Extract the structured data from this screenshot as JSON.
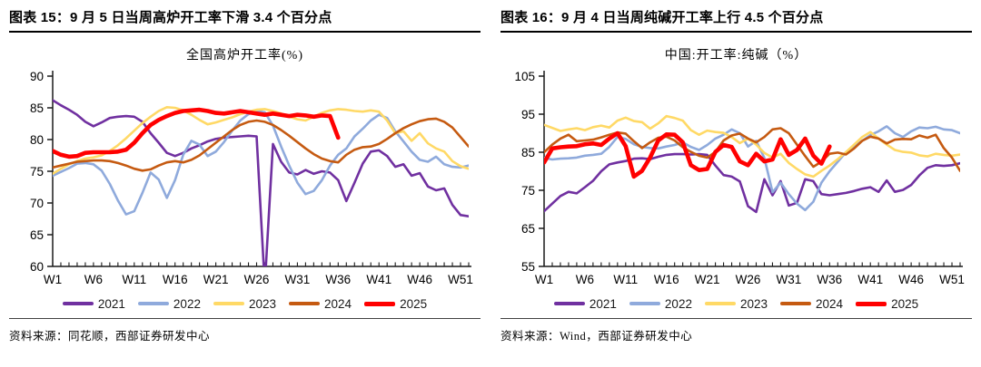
{
  "panels": [
    {
      "header": "图表 15：9 月 5 日当周高炉开工率下滑 3.4 个百分点",
      "source": "资料来源：同花顺，西部证券研发中心"
    },
    {
      "header": "图表 16：9 月 4 日当周纯碱开工率上行 4.5 个百分点",
      "source": "资料来源：Wind，西部证券研发中心"
    }
  ],
  "chart_data": [
    {
      "type": "line",
      "title": "全国高炉开工率(%)",
      "xlabel": "",
      "ylabel": "",
      "ylim": [
        60,
        90
      ],
      "ytick_step": 5,
      "x_weeks": 52,
      "x_tick_labels": [
        "W1",
        "W6",
        "W11",
        "W16",
        "W21",
        "W26",
        "W31",
        "W36",
        "W41",
        "W46",
        "W51"
      ],
      "grid": false,
      "legend_position": "bottom",
      "series": [
        {
          "name": "2021",
          "color": "#7030A0",
          "width": 2.6,
          "values": [
            86.2,
            85.4,
            84.7,
            83.9,
            82.8,
            82.1,
            82.7,
            83.4,
            83.6,
            83.7,
            83.6,
            82.8,
            81.0,
            79.5,
            77.9,
            77.4,
            77.9,
            78.6,
            79.1,
            79.7,
            80.1,
            80.3,
            80.4,
            80.5,
            80.6,
            80.5,
            57.0,
            79.3,
            76.5,
            74.8,
            74.5,
            75.2,
            74.6,
            75.0,
            74.8,
            73.6,
            70.3,
            73.2,
            76.2,
            78.1,
            78.3,
            77.4,
            75.7,
            76.1,
            74.3,
            74.7,
            72.6,
            72.0,
            72.3,
            69.7,
            68.1,
            67.9
          ]
        },
        {
          "name": "2022",
          "color": "#8FAADC",
          "width": 2.6,
          "values": [
            74.3,
            74.9,
            75.5,
            76.2,
            76.3,
            76.1,
            75.1,
            73.0,
            70.4,
            68.2,
            68.7,
            71.6,
            74.8,
            73.7,
            70.8,
            73.6,
            77.6,
            79.8,
            79.2,
            77.4,
            78.1,
            79.6,
            81.4,
            83.0,
            84.0,
            84.5,
            84.3,
            82.2,
            78.9,
            75.9,
            73.2,
            71.4,
            71.9,
            73.6,
            75.9,
            77.6,
            78.6,
            80.5,
            81.7,
            83.0,
            83.9,
            83.4,
            81.3,
            79.7,
            78.1,
            76.8,
            76.5,
            77.3,
            76.1,
            75.7,
            75.6,
            75.9
          ]
        },
        {
          "name": "2023",
          "color": "#FFD966",
          "width": 2.6,
          "values": [
            74.6,
            75.4,
            76.1,
            76.6,
            77.0,
            77.2,
            77.5,
            78.2,
            79.1,
            80.2,
            81.4,
            82.6,
            83.6,
            84.5,
            85.1,
            85.0,
            84.6,
            83.9,
            83.1,
            82.4,
            82.7,
            83.1,
            83.5,
            84.0,
            84.4,
            84.7,
            84.8,
            84.5,
            84.1,
            83.6,
            83.2,
            83.0,
            83.6,
            84.2,
            84.6,
            84.8,
            84.7,
            84.5,
            84.4,
            84.6,
            84.4,
            83.0,
            81.0,
            81.3,
            79.8,
            81.0,
            79.4,
            78.6,
            78.1,
            76.6,
            75.8,
            75.4
          ]
        },
        {
          "name": "2024",
          "color": "#C55A11",
          "width": 2.6,
          "values": [
            75.6,
            75.9,
            76.2,
            76.5,
            76.6,
            76.7,
            76.7,
            76.6,
            76.3,
            75.9,
            75.4,
            75.1,
            75.3,
            75.9,
            76.4,
            76.6,
            76.4,
            76.8,
            77.5,
            78.5,
            79.5,
            80.5,
            81.5,
            82.3,
            82.8,
            83.0,
            82.8,
            82.3,
            81.5,
            80.6,
            79.6,
            78.6,
            77.7,
            77.0,
            76.6,
            76.4,
            77.6,
            78.4,
            78.8,
            78.9,
            79.3,
            80.1,
            81.0,
            81.8,
            82.4,
            82.9,
            83.2,
            83.3,
            82.8,
            81.9,
            80.4,
            78.9
          ]
        },
        {
          "name": "2025",
          "color": "#FF0000",
          "width": 4.6,
          "values": [
            78.2,
            77.6,
            77.3,
            77.4,
            77.9,
            78.0,
            78.0,
            78.0,
            78.1,
            78.4,
            79.5,
            81.0,
            82.3,
            83.1,
            83.7,
            84.2,
            84.5,
            84.6,
            84.7,
            84.5,
            84.2,
            84.1,
            84.3,
            84.5,
            84.3,
            84.1,
            83.9,
            84.1,
            83.9,
            83.7,
            83.9,
            83.8,
            83.6,
            83.8,
            83.7,
            80.3,
            null,
            null,
            null,
            null,
            null,
            null,
            null,
            null,
            null,
            null,
            null,
            null,
            null,
            null,
            null,
            null
          ]
        }
      ]
    },
    {
      "type": "line",
      "title": "中国:开工率:纯碱（%）",
      "xlabel": "",
      "ylabel": "",
      "ylim": [
        55,
        105
      ],
      "ytick_step": 10,
      "x_weeks": 52,
      "x_tick_labels": [
        "W1",
        "W6",
        "W11",
        "W16",
        "W21",
        "W26",
        "W31",
        "W36",
        "W41",
        "W46",
        "W51"
      ],
      "grid": false,
      "legend_position": "bottom",
      "series": [
        {
          "name": "2021",
          "color": "#7030A0",
          "width": 2.6,
          "values": [
            69.5,
            71.5,
            73.5,
            74.6,
            74.2,
            75.8,
            77.5,
            80.0,
            81.8,
            82.3,
            82.7,
            83.3,
            83.4,
            83.2,
            83.8,
            84.3,
            84.5,
            84.5,
            84.4,
            84.5,
            84.3,
            81.5,
            79.0,
            78.6,
            77.3,
            70.8,
            69.3,
            77.9,
            73.7,
            77.4,
            71.0,
            71.7,
            77.9,
            77.4,
            74.0,
            73.7,
            74.0,
            74.3,
            74.8,
            75.4,
            75.8,
            74.6,
            77.6,
            74.6,
            75.1,
            76.4,
            78.9,
            80.9,
            81.6,
            81.4,
            81.6,
            82.1
          ]
        },
        {
          "name": "2022",
          "color": "#8FAADC",
          "width": 2.6,
          "values": [
            83.5,
            83.1,
            83.3,
            83.4,
            83.6,
            84.1,
            84.3,
            84.6,
            86.4,
            89.0,
            88.5,
            87.1,
            86.4,
            86.1,
            86.0,
            86.5,
            86.9,
            87.6,
            86.4,
            85.6,
            86.9,
            88.6,
            89.6,
            91.0,
            90.0,
            86.5,
            88.0,
            83.5,
            74.5,
            77.0,
            74.0,
            71.5,
            69.8,
            72.0,
            77.0,
            80.0,
            82.5,
            85.0,
            86.5,
            88.0,
            89.5,
            90.5,
            91.8,
            90.0,
            89.0,
            90.5,
            91.5,
            91.3,
            91.7,
            91.0,
            90.8,
            90.0
          ]
        },
        {
          "name": "2023",
          "color": "#FFD966",
          "width": 2.6,
          "values": [
            92.2,
            91.4,
            90.6,
            91.0,
            91.3,
            90.8,
            91.6,
            92.0,
            91.5,
            93.3,
            94.1,
            93.2,
            92.9,
            91.2,
            92.6,
            94.5,
            94.0,
            93.3,
            90.8,
            89.6,
            90.7,
            90.3,
            90.1,
            89.0,
            87.4,
            88.6,
            87.0,
            84.8,
            83.6,
            84.6,
            82.2,
            80.6,
            79.2,
            78.6,
            80.1,
            81.5,
            83.2,
            85.0,
            87.0,
            89.0,
            90.3,
            88.6,
            87.0,
            85.6,
            85.1,
            84.9,
            84.2,
            83.9,
            84.6,
            84.3,
            84.1,
            84.4
          ]
        },
        {
          "name": "2024",
          "color": "#C55A11",
          "width": 2.6,
          "values": [
            85.0,
            87.0,
            88.6,
            89.6,
            87.9,
            88.1,
            88.3,
            88.9,
            89.6,
            90.2,
            89.9,
            87.9,
            86.1,
            87.6,
            88.8,
            89.1,
            88.1,
            86.3,
            85.1,
            84.1,
            83.6,
            85.1,
            88.1,
            89.4,
            89.9,
            88.6,
            87.6,
            89.0,
            91.0,
            91.3,
            90.0,
            87.0,
            84.0,
            81.2,
            82.5,
            84.6,
            84.9,
            84.4,
            86.0,
            88.0,
            89.1,
            88.6,
            87.3,
            88.3,
            88.5,
            88.4,
            89.4,
            88.8,
            89.6,
            86.1,
            83.6,
            80.1
          ]
        },
        {
          "name": "2025",
          "color": "#FF0000",
          "width": 4.6,
          "values": [
            82.3,
            86.0,
            86.3,
            86.5,
            86.6,
            87.1,
            87.3,
            86.9,
            88.6,
            90.0,
            86.6,
            78.6,
            80.1,
            83.6,
            88.1,
            89.7,
            89.6,
            87.6,
            81.6,
            80.3,
            80.6,
            85.1,
            86.9,
            86.4,
            82.6,
            81.6,
            84.6,
            82.6,
            83.1,
            88.4,
            84.3,
            85.6,
            88.6,
            84.1,
            82.0,
            86.5,
            null,
            null,
            null,
            null,
            null,
            null,
            null,
            null,
            null,
            null,
            null,
            null,
            null,
            null,
            null,
            null
          ]
        }
      ]
    }
  ]
}
